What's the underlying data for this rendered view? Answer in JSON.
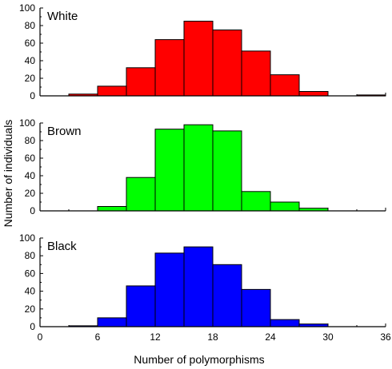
{
  "chart_data": {
    "type": "bar",
    "xlabel": "Number of polymorphisms",
    "ylabel": "Number of individuals",
    "x_ticks": [
      "0",
      "6",
      "12",
      "18",
      "24",
      "30",
      "36"
    ],
    "xlim": [
      0,
      36
    ],
    "bin_width": 3,
    "bin_starts": [
      3,
      6,
      9,
      12,
      15,
      18,
      21,
      24,
      27,
      30,
      33
    ],
    "panels": [
      {
        "label": "White",
        "color": "#ff0000",
        "ylim": [
          0,
          100
        ],
        "y_ticks": [
          "0",
          "20",
          "40",
          "60",
          "80",
          "100"
        ],
        "values": [
          2,
          11,
          32,
          64,
          85,
          75,
          51,
          24,
          5,
          0,
          1
        ]
      },
      {
        "label": "Brown",
        "color": "#00ff00",
        "ylim": [
          0,
          100
        ],
        "y_ticks": [
          "0",
          "20",
          "40",
          "60",
          "80",
          "100"
        ],
        "values": [
          0,
          5,
          38,
          93,
          98,
          91,
          22,
          10,
          3,
          0,
          0
        ]
      },
      {
        "label": "Black",
        "color": "#0000ff",
        "ylim": [
          0,
          100
        ],
        "y_ticks": [
          "0",
          "20",
          "40",
          "60",
          "80",
          "100"
        ],
        "values": [
          1,
          10,
          46,
          83,
          90,
          70,
          42,
          8,
          3,
          0,
          0
        ]
      }
    ]
  }
}
